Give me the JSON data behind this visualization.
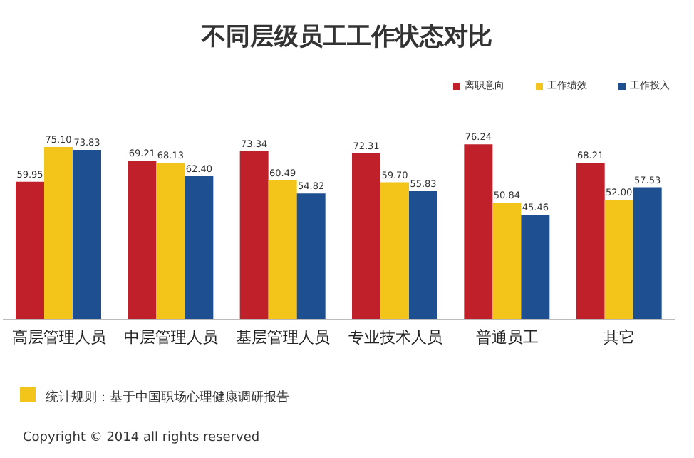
{
  "chart_data": {
    "type": "bar",
    "title": "不同层级员工工作状态对比",
    "categories": [
      "高层管理人员",
      "中层管理人员",
      "基层管理人员",
      "专业技术人员",
      "普通员工",
      "其它"
    ],
    "series": [
      {
        "name": "离职意向",
        "color": "#c0202a",
        "values": [
          59.95,
          69.21,
          73.34,
          72.31,
          76.24,
          68.21
        ],
        "value_labels": [
          "59.95",
          "69.21",
          "73.34",
          "72.31",
          "76.24",
          "68.21"
        ]
      },
      {
        "name": "工作绩效",
        "color": "#f3c419",
        "values": [
          75.1,
          68.13,
          60.49,
          59.7,
          50.84,
          52.0
        ],
        "value_labels": [
          "75.10",
          "68.13",
          "60.49",
          "59.70",
          "50.84",
          "52.00"
        ]
      },
      {
        "name": "工作投入",
        "color": "#1d4f91",
        "values": [
          73.83,
          62.4,
          54.82,
          55.83,
          45.46,
          57.53
        ],
        "value_labels": [
          "73.83",
          "62.40",
          "54.82",
          "55.83",
          "45.46",
          "57.53"
        ]
      }
    ],
    "legend": "top right",
    "grid": false,
    "annotations": [
      "统计规则：基于中国职场心理健康调研报告",
      "Copyright  ©  2014 all rights reserved"
    ]
  }
}
